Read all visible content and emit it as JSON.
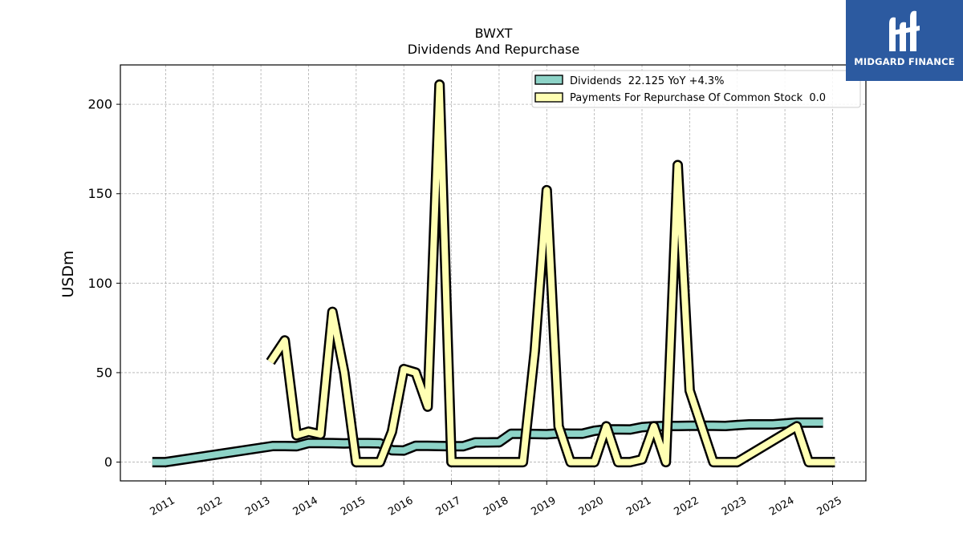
{
  "logo": {
    "text": "MIDGARD FINANCE"
  },
  "colors": {
    "dividends": "#8dd3c7",
    "repurchase": "#ffffb3",
    "outline": "#000000",
    "grid": "#b0b0b0",
    "logo_bg": "#2c5aa0"
  },
  "chart_data": {
    "type": "line",
    "title": "BWXT",
    "subtitle": "Dividends And Repurchase",
    "ylabel": "USDm",
    "xlabel": "",
    "ylim": [
      -10.5,
      222
    ],
    "xlim": [
      2010.05,
      2025.7
    ],
    "yticks": [
      0,
      50,
      100,
      150,
      200
    ],
    "xticks": [
      "2011",
      "2012",
      "2013",
      "2014",
      "2015",
      "2016",
      "2017",
      "2018",
      "2019",
      "2020",
      "2021",
      "2022",
      "2023",
      "2024",
      "2025"
    ],
    "grid": true,
    "legend_position": "top-right",
    "series": [
      {
        "name": "Dividends  22.125 YoY +4.3%",
        "key": "dividends",
        "points": [
          [
            2010.72,
            0.0
          ],
          [
            2011.0,
            0.0
          ],
          [
            2013.25,
            9.0
          ],
          [
            2013.5,
            9.0
          ],
          [
            2013.75,
            8.9
          ],
          [
            2014.0,
            10.7
          ],
          [
            2014.25,
            10.7
          ],
          [
            2014.5,
            10.6
          ],
          [
            2014.75,
            10.4
          ],
          [
            2015.0,
            10.6
          ],
          [
            2015.25,
            10.6
          ],
          [
            2015.5,
            10.5
          ],
          [
            2015.75,
            6.6
          ],
          [
            2016.0,
            6.5
          ],
          [
            2016.25,
            9.1
          ],
          [
            2016.5,
            9.1
          ],
          [
            2016.75,
            9.0
          ],
          [
            2017.0,
            8.9
          ],
          [
            2017.25,
            8.9
          ],
          [
            2017.5,
            11.0
          ],
          [
            2017.75,
            11.0
          ],
          [
            2018.0,
            11.1
          ],
          [
            2018.25,
            15.8
          ],
          [
            2018.5,
            15.8
          ],
          [
            2018.75,
            15.7
          ],
          [
            2019.0,
            15.6
          ],
          [
            2019.25,
            16.0
          ],
          [
            2019.5,
            15.9
          ],
          [
            2019.75,
            15.9
          ],
          [
            2020.0,
            17.5
          ],
          [
            2020.25,
            18.3
          ],
          [
            2020.5,
            18.3
          ],
          [
            2020.75,
            18.2
          ],
          [
            2021.0,
            19.5
          ],
          [
            2021.25,
            20.0
          ],
          [
            2021.5,
            20.2
          ],
          [
            2021.75,
            20.2
          ],
          [
            2022.0,
            20.3
          ],
          [
            2022.25,
            20.3
          ],
          [
            2022.5,
            20.3
          ],
          [
            2022.75,
            20.2
          ],
          [
            2023.0,
            20.7
          ],
          [
            2023.25,
            21.1
          ],
          [
            2023.5,
            21.1
          ],
          [
            2023.75,
            21.1
          ],
          [
            2024.0,
            21.6
          ],
          [
            2024.25,
            22.1
          ],
          [
            2024.5,
            22.1
          ],
          [
            2024.8,
            22.1
          ]
        ]
      },
      {
        "name": "Payments For Repurchase Of Common Stock  0.0",
        "key": "repurchase",
        "points": [
          [
            2013.2,
            56.0
          ],
          [
            2013.5,
            68.0
          ],
          [
            2013.75,
            15.0
          ],
          [
            2014.0,
            17.0
          ],
          [
            2014.25,
            15.5
          ],
          [
            2014.5,
            84.0
          ],
          [
            2014.75,
            50.0
          ],
          [
            2015.0,
            0.0
          ],
          [
            2015.5,
            0.0
          ],
          [
            2015.75,
            17.0
          ],
          [
            2016.0,
            52.0
          ],
          [
            2016.25,
            50.0
          ],
          [
            2016.5,
            31.0
          ],
          [
            2016.75,
            211.0
          ],
          [
            2017.0,
            0.0
          ],
          [
            2018.5,
            0.0
          ],
          [
            2018.75,
            62.0
          ],
          [
            2019.0,
            152.0
          ],
          [
            2019.25,
            20.0
          ],
          [
            2019.5,
            0.0
          ],
          [
            2020.0,
            0.0
          ],
          [
            2020.25,
            20.0
          ],
          [
            2020.5,
            0.0
          ],
          [
            2020.75,
            0.0
          ],
          [
            2021.0,
            1.5
          ],
          [
            2021.25,
            20.0
          ],
          [
            2021.5,
            0.0
          ],
          [
            2021.75,
            166.0
          ],
          [
            2022.0,
            40.0
          ],
          [
            2022.25,
            20.0
          ],
          [
            2022.5,
            0.0
          ],
          [
            2023.0,
            0.0
          ],
          [
            2024.25,
            20.0
          ],
          [
            2024.5,
            0.0
          ],
          [
            2025.05,
            0.0
          ]
        ]
      }
    ]
  }
}
